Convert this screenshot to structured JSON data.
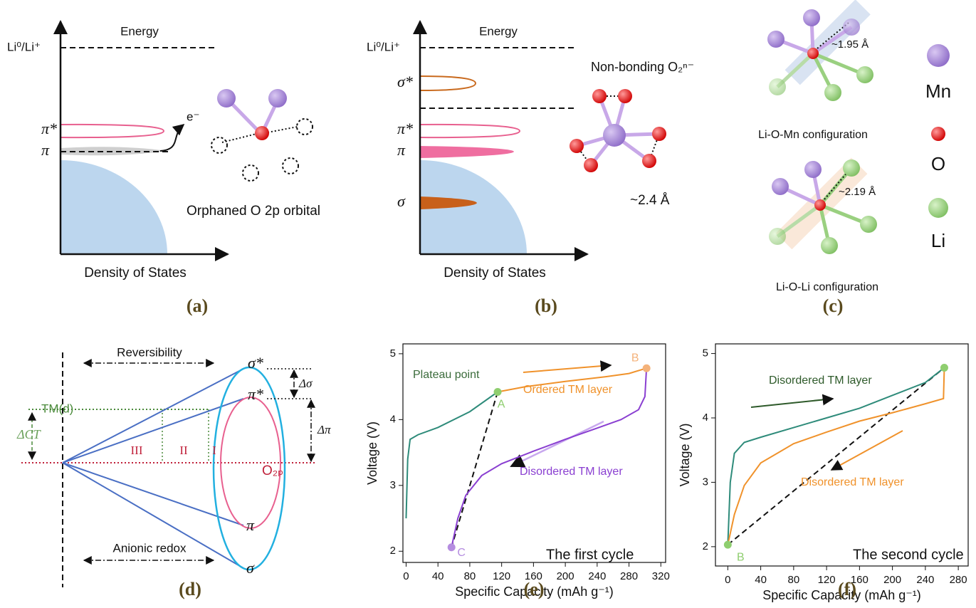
{
  "panels": {
    "a": {
      "label": "(a)",
      "energy": "Energy",
      "level": "Li⁰/Li⁺",
      "pi_star": "π*",
      "pi": "π",
      "electron": "e⁻",
      "caption": "Orphaned O 2p orbital",
      "xlabel": "Density of States"
    },
    "b": {
      "label": "(b)",
      "energy": "Energy",
      "level": "Li⁰/Li⁺",
      "sigma_star": "σ*",
      "pi_star": "π*",
      "pi": "π",
      "sigma": "σ",
      "title": "Non-bonding O₂ⁿ⁻",
      "distance": "~2.4 Å",
      "xlabel": "Density of States"
    },
    "c": {
      "label": "(c)",
      "d1": "~1.95 Å",
      "config1": "Li-O-Mn configuration",
      "d2": "~2.19 Å",
      "config2": "Li-O-Li configuration",
      "legend": [
        "Mn",
        "O",
        "Li"
      ]
    },
    "d": {
      "label": "(d)",
      "reversibility": "Reversibility",
      "anionic": "Anionic redox",
      "tmd": "TM(d)",
      "dct": "ΔCT",
      "sigma_star": "σ*",
      "pi_star": "π*",
      "o2p": "O₂ₚ",
      "pi": "π",
      "sigma": "σ",
      "dsigma": "Δσ",
      "dpi": "Δπ",
      "regions": [
        "III",
        "II",
        "I"
      ]
    }
  },
  "chart_data": [
    {
      "type": "line",
      "label": "(e)",
      "xlabel": "Specific Capacity (mAh g⁻¹)",
      "ylabel": "Voltage (V)",
      "xlim": [
        -4,
        326
      ],
      "ylim": [
        1.83,
        5.15
      ],
      "xticks": [
        0,
        40,
        80,
        120,
        160,
        200,
        240,
        280,
        320
      ],
      "yticks": [
        2,
        3,
        4,
        5
      ],
      "series": [
        {
          "color": "#2e8b7a",
          "x": [
            0,
            2,
            5,
            15,
            40,
            80,
            115
          ],
          "values": [
            2.5,
            3.4,
            3.7,
            3.77,
            3.88,
            4.12,
            4.42
          ]
        },
        {
          "color": "#f0922b",
          "x": [
            115,
            150,
            200,
            250,
            280,
            302
          ],
          "values": [
            4.42,
            4.5,
            4.58,
            4.65,
            4.7,
            4.78
          ]
        },
        {
          "color": "#8a3fd1",
          "x": [
            302,
            300,
            292,
            270,
            240,
            200,
            160,
            120,
            95,
            75,
            65,
            57
          ],
          "values": [
            4.78,
            4.35,
            4.15,
            4.0,
            3.87,
            3.7,
            3.52,
            3.33,
            3.15,
            2.85,
            2.5,
            2.06
          ]
        }
      ],
      "dashed": {
        "x": [
          115,
          57
        ],
        "values": [
          4.42,
          2.06
        ]
      },
      "points": {
        "x": [
          115,
          302,
          57
        ],
        "values": [
          4.42,
          4.78,
          2.06
        ],
        "labels": [
          "A",
          "B",
          "C"
        ],
        "colors": [
          "#8fce6f",
          "#f4b27a",
          "#b58de0"
        ]
      },
      "annotations": [
        {
          "text": "Plateau point",
          "color": "#3a6b3a"
        },
        {
          "text": "Ordered TM layer",
          "color": "#f0922b"
        },
        {
          "text": "Disordered TM layer",
          "color": "#8a3fd1"
        },
        {
          "text": "The first cycle",
          "color": "#111111"
        }
      ]
    },
    {
      "type": "line",
      "label": "(f)",
      "xlabel": "Specific Capacity (mAh g⁻¹)",
      "ylabel": "Voltage (V)",
      "xlim": [
        -15,
        292
      ],
      "ylim": [
        1.7,
        5.15
      ],
      "xticks": [
        0,
        40,
        80,
        120,
        160,
        200,
        240,
        280
      ],
      "yticks": [
        2,
        3,
        4,
        5
      ],
      "series": [
        {
          "color": "#2e8b7a",
          "x": [
            0,
            3,
            8,
            20,
            40,
            80,
            120,
            160,
            200,
            240,
            263
          ],
          "values": [
            2.03,
            3.0,
            3.45,
            3.62,
            3.7,
            3.85,
            4.0,
            4.15,
            4.35,
            4.55,
            4.78
          ]
        },
        {
          "color": "#f0922b",
          "x": [
            263,
            262,
            240,
            200,
            160,
            120,
            80,
            40,
            20,
            8,
            0
          ],
          "values": [
            4.78,
            4.3,
            4.22,
            4.08,
            3.95,
            3.78,
            3.6,
            3.3,
            2.95,
            2.5,
            2.03
          ]
        }
      ],
      "dashed": {
        "x": [
          0,
          263
        ],
        "values": [
          2.03,
          4.78
        ]
      },
      "points": {
        "x": [
          0,
          263
        ],
        "values": [
          2.03,
          4.78
        ],
        "labels": [
          "B",
          null
        ],
        "colors": [
          "#8fce6f",
          "#8fce6f"
        ]
      },
      "annotations": [
        {
          "text": "Disordered TM layer",
          "color": "#2e5a2a"
        },
        {
          "text": "Disordered TM layer",
          "color": "#f0922b"
        },
        {
          "text": "The second cycle",
          "color": "#111111"
        }
      ]
    }
  ]
}
